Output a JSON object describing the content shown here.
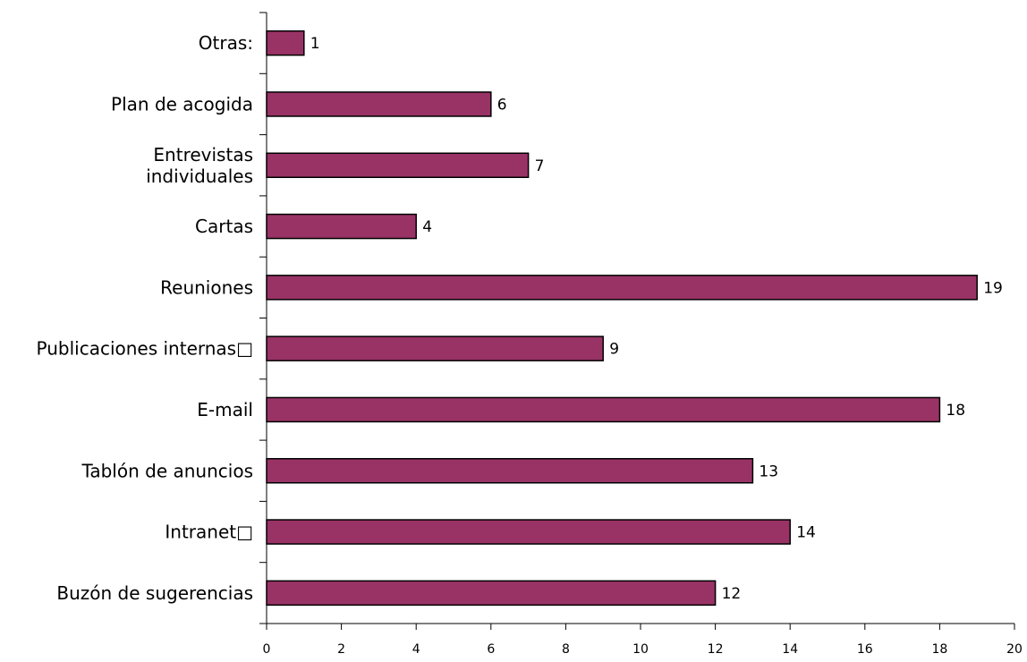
{
  "chart_data": {
    "type": "bar",
    "orientation": "horizontal",
    "categories": [
      "Otras:",
      "Plan de acogida",
      "Entrevistas individuales",
      "Cartas",
      "Reuniones",
      "Publicaciones internas□",
      "E-mail",
      "Tablón de anuncios",
      "Intranet□",
      "Buzón de sugerencias"
    ],
    "category_lines": [
      [
        "Otras:"
      ],
      [
        "Plan de acogida"
      ],
      [
        "Entrevistas",
        "individuales"
      ],
      [
        "Cartas"
      ],
      [
        "Reuniones"
      ],
      [
        "Publicaciones internas□"
      ],
      [
        "E-mail"
      ],
      [
        "Tablón de anuncios"
      ],
      [
        "Intranet□"
      ],
      [
        "Buzón de sugerencias"
      ]
    ],
    "values": [
      1,
      6,
      7,
      4,
      19,
      9,
      18,
      13,
      14,
      12
    ],
    "xlim": [
      0,
      20
    ],
    "xticks": [
      0,
      2,
      4,
      6,
      8,
      10,
      12,
      14,
      16,
      18,
      20
    ],
    "data_labels": true,
    "grid": false,
    "legend": "none",
    "title": "",
    "xlabel": "",
    "ylabel": "",
    "colors": {
      "bar_fill": "#993366",
      "bar_stroke": "#000000"
    }
  }
}
